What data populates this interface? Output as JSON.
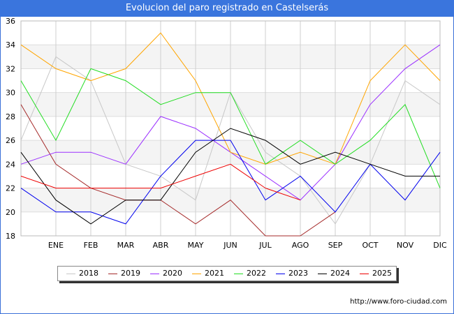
{
  "header": {
    "title": "Evolucion del paro registrado en Castelserás"
  },
  "footer": {
    "url": "http://www.foro-ciudad.com"
  },
  "chart_data": {
    "type": "line",
    "title": "Evolucion del paro registrado en Castelserás",
    "xlabel": "",
    "ylabel": "",
    "categories": [
      "",
      "ENE",
      "FEB",
      "MAR",
      "ABR",
      "MAY",
      "JUN",
      "JUL",
      "AGO",
      "SEP",
      "OCT",
      "NOV",
      "DIC"
    ],
    "ylim": [
      18,
      36
    ],
    "yticks": [
      18,
      20,
      22,
      24,
      26,
      28,
      30,
      32,
      34,
      36
    ],
    "grid": true,
    "legend_position": "bottom",
    "series": [
      {
        "name": "2018",
        "color": "#c8c8c8",
        "values": [
          26,
          33,
          31,
          24,
          23,
          21,
          30,
          25,
          23,
          19,
          24,
          31,
          29
        ]
      },
      {
        "name": "2019",
        "color": "#a52a2a",
        "values": [
          29,
          24,
          22,
          21,
          21,
          19,
          21,
          18,
          18,
          20,
          null,
          null,
          null
        ]
      },
      {
        "name": "2020",
        "color": "#9b30ff",
        "values": [
          24,
          25,
          25,
          24,
          28,
          27,
          25,
          23,
          21,
          24,
          29,
          32,
          34
        ]
      },
      {
        "name": "2021",
        "color": "#ffa500",
        "values": [
          34,
          32,
          31,
          32,
          35,
          31,
          25,
          24,
          25,
          24,
          31,
          34,
          31
        ]
      },
      {
        "name": "2022",
        "color": "#22dd22",
        "values": [
          31,
          26,
          32,
          31,
          29,
          30,
          30,
          24,
          26,
          24,
          26,
          29,
          22
        ]
      },
      {
        "name": "2023",
        "color": "#0000ee",
        "values": [
          22,
          20,
          20,
          19,
          23,
          26,
          26,
          21,
          23,
          20,
          24,
          21,
          25
        ]
      },
      {
        "name": "2024",
        "color": "#000000",
        "values": [
          25,
          21,
          19,
          21,
          21,
          25,
          27,
          26,
          24,
          25,
          24,
          23,
          23
        ]
      },
      {
        "name": "2025",
        "color": "#ee0000",
        "values": [
          23,
          22,
          22,
          22,
          22,
          23,
          24,
          22,
          21,
          null,
          null,
          null,
          null
        ]
      }
    ]
  }
}
